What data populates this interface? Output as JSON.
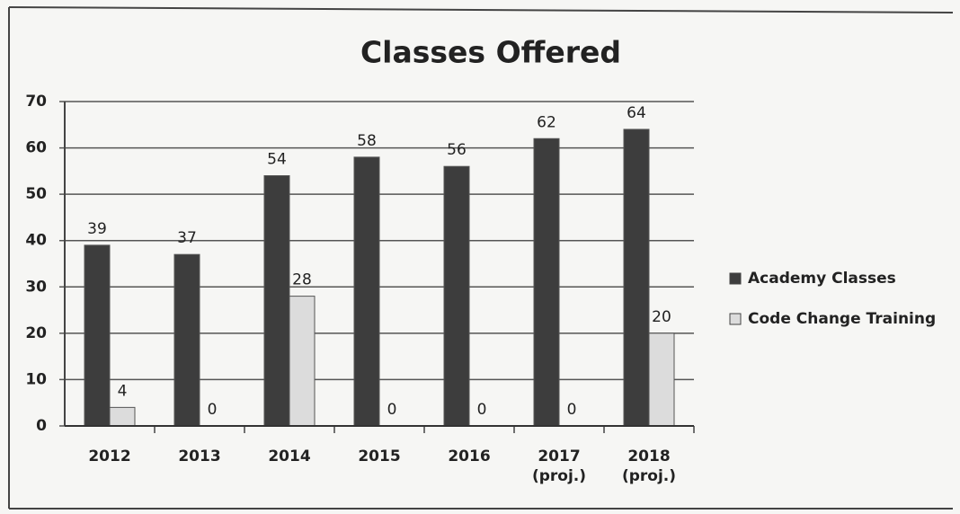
{
  "chart_data": {
    "type": "bar",
    "title": "Classes Offered",
    "categories": [
      "2012",
      "2013",
      "2014",
      "2015",
      "2016",
      "2017 (proj.)",
      "2018 (proj.)"
    ],
    "series": [
      {
        "name": "Academy Classes",
        "color": "#3d3d3d",
        "values": [
          39,
          37,
          54,
          58,
          56,
          62,
          64
        ]
      },
      {
        "name": "Code Change Training",
        "color": "#dcdcdc",
        "values": [
          4,
          0,
          28,
          0,
          0,
          0,
          20
        ]
      }
    ],
    "ylim": [
      0,
      70
    ],
    "yticks": [
      0,
      10,
      20,
      30,
      40,
      50,
      60,
      70
    ],
    "grid": true,
    "legend": "right"
  }
}
